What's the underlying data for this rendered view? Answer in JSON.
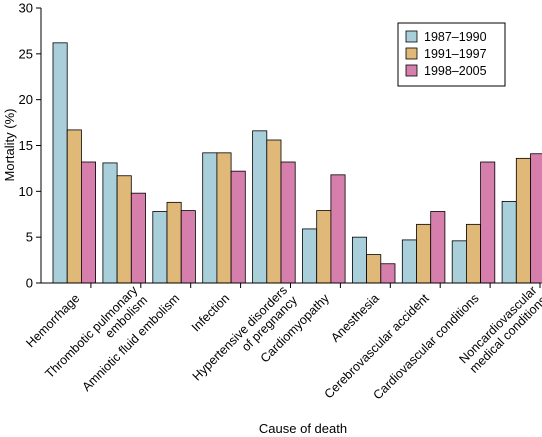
{
  "chart_data": {
    "type": "bar",
    "xlabel": "Cause of death",
    "ylabel": "Mortality (%)",
    "ylim": [
      0,
      30
    ],
    "yticks": [
      0,
      5,
      10,
      15,
      20,
      25,
      30
    ],
    "grid": false,
    "legend_position": "top-right",
    "categories": [
      [
        "Hemorrhage"
      ],
      [
        "Thrombotic pulmonary",
        "embolism"
      ],
      [
        "Amniotic fluid embolism"
      ],
      [
        "Infection"
      ],
      [
        "Hypertensive disorders",
        "of pregnancy"
      ],
      [
        "Cardiomyopathy"
      ],
      [
        "Anesthesia"
      ],
      [
        "Cerebrovascular accident"
      ],
      [
        "Cardiovascular conditions"
      ],
      [
        "Noncardiovascular",
        "medical conditions"
      ]
    ],
    "series": [
      {
        "name": "1987–1990",
        "color": "#a9d0da",
        "values": [
          26.2,
          13.1,
          7.8,
          14.2,
          16.6,
          5.9,
          5.0,
          4.7,
          4.6,
          8.9
        ]
      },
      {
        "name": "1991–1997",
        "color": "#e0b878",
        "values": [
          16.7,
          11.7,
          8.8,
          14.2,
          15.6,
          7.9,
          3.1,
          6.4,
          6.4,
          13.6
        ]
      },
      {
        "name": "1998–2005",
        "color": "#d77fac",
        "values": [
          13.2,
          9.8,
          7.9,
          12.2,
          13.2,
          11.8,
          2.1,
          7.8,
          13.2,
          14.1
        ]
      }
    ]
  }
}
